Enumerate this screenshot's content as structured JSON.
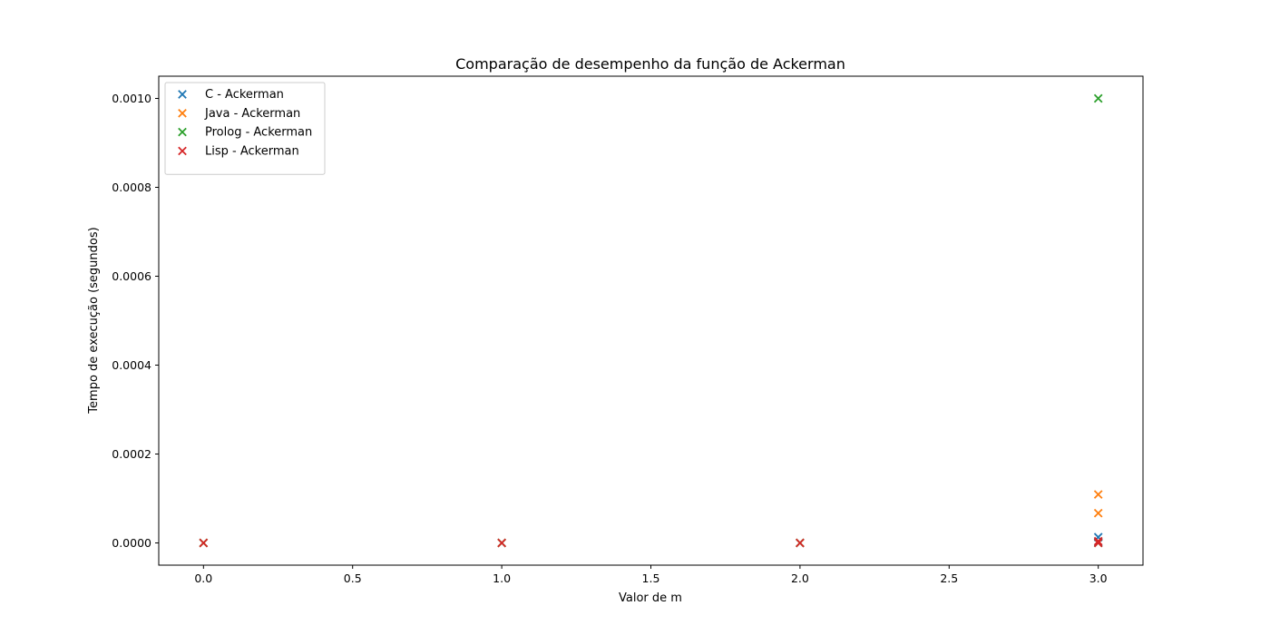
{
  "chart_data": {
    "type": "scatter",
    "title": "Comparação de desempenho da função de Ackerman",
    "xlabel": "Valor de m",
    "ylabel": "Tempo de execução (segundos)",
    "xlim": [
      -0.15,
      3.15
    ],
    "ylim": [
      -5e-05,
      0.00105
    ],
    "x_ticks": [
      0.0,
      0.5,
      1.0,
      1.5,
      2.0,
      2.5,
      3.0
    ],
    "x_tick_labels": [
      "0.0",
      "0.5",
      "1.0",
      "1.5",
      "2.0",
      "2.5",
      "3.0"
    ],
    "y_ticks": [
      0.0,
      0.0002,
      0.0004,
      0.0006,
      0.0008,
      0.001
    ],
    "y_tick_labels": [
      "0.0000",
      "0.0002",
      "0.0004",
      "0.0006",
      "0.0008",
      "0.0010"
    ],
    "grid": false,
    "legend_position": "top-left",
    "marker": "x",
    "series": [
      {
        "name": "C - Ackerman",
        "color": "#1f77b4",
        "points": [
          [
            0,
            0.0
          ],
          [
            1,
            0.0
          ],
          [
            2,
            0.0
          ],
          [
            3,
            1.3e-05
          ],
          [
            3,
            2e-06
          ]
        ]
      },
      {
        "name": "Java - Ackerman",
        "color": "#ff7f0e",
        "points": [
          [
            0,
            0.0
          ],
          [
            1,
            0.0
          ],
          [
            2,
            0.0
          ],
          [
            3,
            0.000109
          ],
          [
            3,
            6.7e-05
          ]
        ]
      },
      {
        "name": "Prolog - Ackerman",
        "color": "#2ca02c",
        "points": [
          [
            0,
            0.0
          ],
          [
            1,
            0.0
          ],
          [
            2,
            0.0
          ],
          [
            3,
            0.001
          ],
          [
            3,
            0.0
          ]
        ]
      },
      {
        "name": "Lisp - Ackerman",
        "color": "#d62728",
        "points": [
          [
            0,
            0.0
          ],
          [
            1,
            0.0
          ],
          [
            2,
            0.0
          ],
          [
            3,
            4e-06
          ],
          [
            3,
            0.0
          ]
        ]
      }
    ]
  }
}
